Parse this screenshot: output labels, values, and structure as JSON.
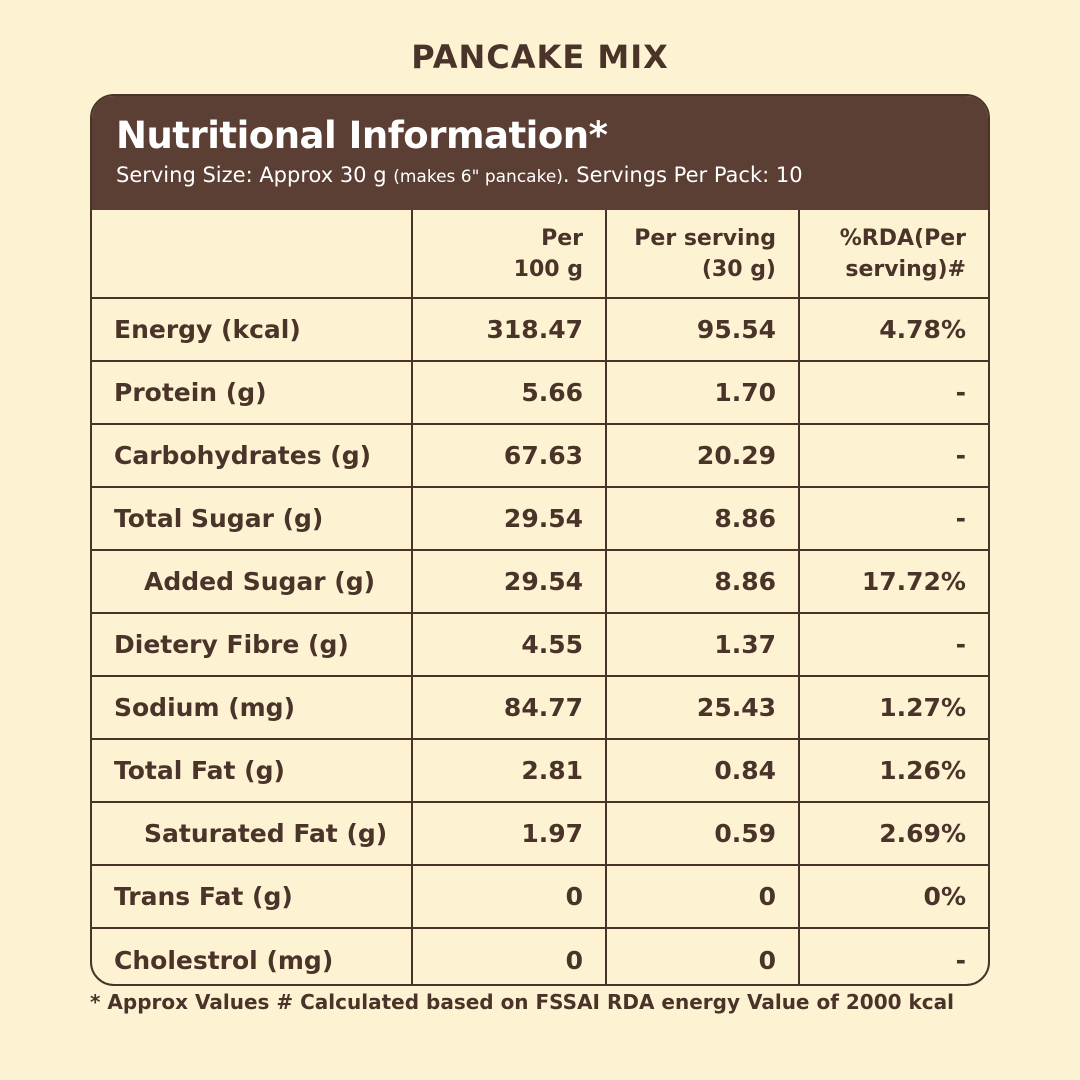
{
  "product_title": "PANCAKE MIX",
  "panel": {
    "heading": "Nutritional Information*",
    "serving_prefix": "Serving Size: Approx 30 g ",
    "serving_note": "(makes 6\" pancake)",
    "serving_suffix": ". Servings Per Pack: 10"
  },
  "table": {
    "headers": [
      "",
      {
        "line1": "Per",
        "line2": "100 g"
      },
      {
        "line1": "Per serving",
        "line2": "(30 g)"
      },
      {
        "line1": "%RDA(Per",
        "line2": "serving)#"
      }
    ],
    "rows": [
      {
        "label": "Energy (kcal)",
        "per100": "318.47",
        "perServing": "95.54",
        "rda": "4.78%"
      },
      {
        "label": "Protein (g)",
        "per100": "5.66",
        "perServing": "1.70",
        "rda": "-"
      },
      {
        "label": "Carbohydrates (g)",
        "per100": "67.63",
        "perServing": "20.29",
        "rda": "-"
      },
      {
        "label": "Total Sugar (g)",
        "per100": "29.54",
        "perServing": "8.86",
        "rda": "-"
      },
      {
        "label": "Added Sugar (g)",
        "per100": "29.54",
        "perServing": "8.86",
        "rda": "17.72%"
      },
      {
        "label": "Dietery Fibre (g)",
        "per100": "4.55",
        "perServing": "1.37",
        "rda": "-"
      },
      {
        "label": "Sodium (mg)",
        "per100": "84.77",
        "perServing": "25.43",
        "rda": "1.27%"
      },
      {
        "label": "Total Fat (g)",
        "per100": "2.81",
        "perServing": "0.84",
        "rda": "1.26%"
      },
      {
        "label": "Saturated Fat (g)",
        "per100": "1.97",
        "perServing": "0.59",
        "rda": "2.69%"
      },
      {
        "label": "Trans Fat (g)",
        "per100": "0",
        "perServing": "0",
        "rda": "0%"
      },
      {
        "label": "Cholestrol (mg)",
        "per100": "0",
        "perServing": "0",
        "rda": "-"
      }
    ]
  },
  "footnote": "* Approx Values # Calculated based on FSSAI RDA energy Value of 2000 kcal",
  "colors": {
    "background": "#fdf2d2",
    "header_bg": "#5c3f34",
    "text": "#4a3329"
  }
}
